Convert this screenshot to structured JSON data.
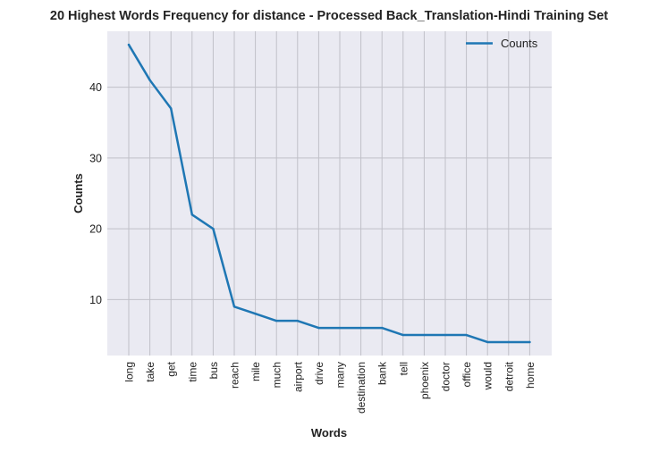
{
  "chart_data": {
    "type": "line",
    "title": "20 Highest Words Frequency for distance - Processed Back_Translation-Hindi Training Set",
    "xlabel": "Words",
    "ylabel": "Counts",
    "categories": [
      "long",
      "take",
      "get",
      "time",
      "bus",
      "reach",
      "mile",
      "much",
      "airport",
      "drive",
      "many",
      "destination",
      "bank",
      "tell",
      "phoenix",
      "doctor",
      "office",
      "would",
      "detroit",
      "home"
    ],
    "series": [
      {
        "name": "Counts",
        "values": [
          46,
          41,
          37,
          22,
          20,
          9,
          8,
          7,
          7,
          6,
          6,
          6,
          6,
          5,
          5,
          5,
          5,
          4,
          4,
          4
        ],
        "color": "#1f77b4"
      }
    ],
    "yticks": [
      10,
      20,
      30,
      40
    ],
    "ylim": [
      2.1,
      47.9
    ],
    "grid": true,
    "legend_position": "top-right",
    "background_color": "#eaeaf2",
    "grid_color": "#c0c0c8"
  }
}
